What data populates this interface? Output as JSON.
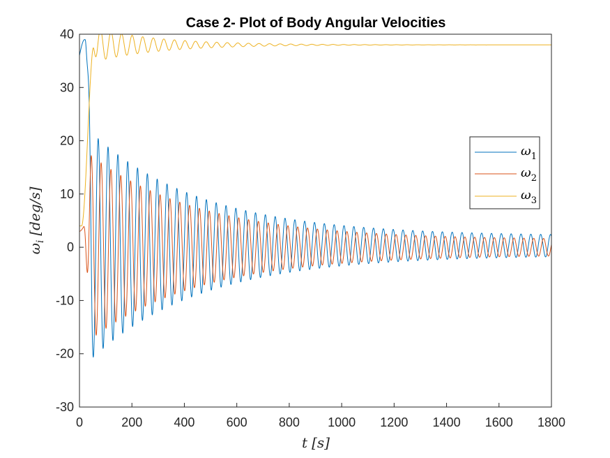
{
  "chart_data": {
    "type": "line",
    "title": "Case 2- Plot of Body Angular Velocities",
    "xlabel": "t [s]",
    "xlabel_parts": {
      "var": "t",
      "unit": "[s]"
    },
    "ylabel": "ω_i [deg/s]",
    "ylabel_parts": {
      "var": "ω",
      "sub": "i",
      "unit": "[deg/s]"
    },
    "xlim": [
      0,
      1800
    ],
    "ylim": [
      -30,
      40
    ],
    "xticks": [
      0,
      200,
      400,
      600,
      800,
      1000,
      1200,
      1400,
      1600,
      1800
    ],
    "yticks": [
      -30,
      -20,
      -10,
      0,
      10,
      20,
      30,
      40
    ],
    "grid": false,
    "legend_position": "right",
    "series": [
      {
        "name": "ω1",
        "legend_symbol": "ω",
        "legend_sub": "1",
        "color": "#0072BD",
        "model": {
          "kind": "damped_oscillation",
          "period_s": 37.5,
          "amplitude_start": 23.5,
          "amplitude_end": 1.8,
          "tau_s": 420,
          "offset": 0.3
        },
        "points": [
          [
            0,
            36
          ],
          [
            20,
            39
          ],
          [
            40,
            25
          ],
          [
            55,
            -21
          ],
          [
            75,
            25
          ],
          [
            110,
            -22.5
          ],
          [
            150,
            22
          ],
          [
            400,
            13
          ],
          [
            800,
            5
          ],
          [
            1200,
            3
          ],
          [
            1800,
            -0.5
          ]
        ]
      },
      {
        "name": "ω2",
        "legend_symbol": "ω",
        "legend_sub": "2",
        "color": "#D95319",
        "model": {
          "kind": "damped_oscillation",
          "period_s": 37.5,
          "amplitude_start": 19,
          "amplitude_end": 1.4,
          "tau_s": 420,
          "offset": 0
        },
        "points": [
          [
            0,
            3
          ],
          [
            15,
            3.5
          ],
          [
            45,
            22
          ],
          [
            75,
            -17.5
          ],
          [
            100,
            18
          ],
          [
            130,
            -17
          ],
          [
            400,
            10
          ],
          [
            800,
            4
          ],
          [
            1200,
            2.5
          ],
          [
            1800,
            0.8
          ]
        ]
      },
      {
        "name": "ω3",
        "legend_symbol": "ω",
        "legend_sub": "3",
        "color": "#EDB120",
        "model": {
          "kind": "rise_then_damped_ripple",
          "final_value": 38,
          "ripple_start": 4,
          "ripple_tau_s": 250
        },
        "points": [
          [
            0,
            4
          ],
          [
            30,
            12
          ],
          [
            45,
            36
          ],
          [
            80,
            30.5
          ],
          [
            150,
            33.5
          ],
          [
            300,
            35.5
          ],
          [
            600,
            37.3
          ],
          [
            1000,
            37.8
          ],
          [
            1800,
            38
          ]
        ]
      }
    ]
  }
}
